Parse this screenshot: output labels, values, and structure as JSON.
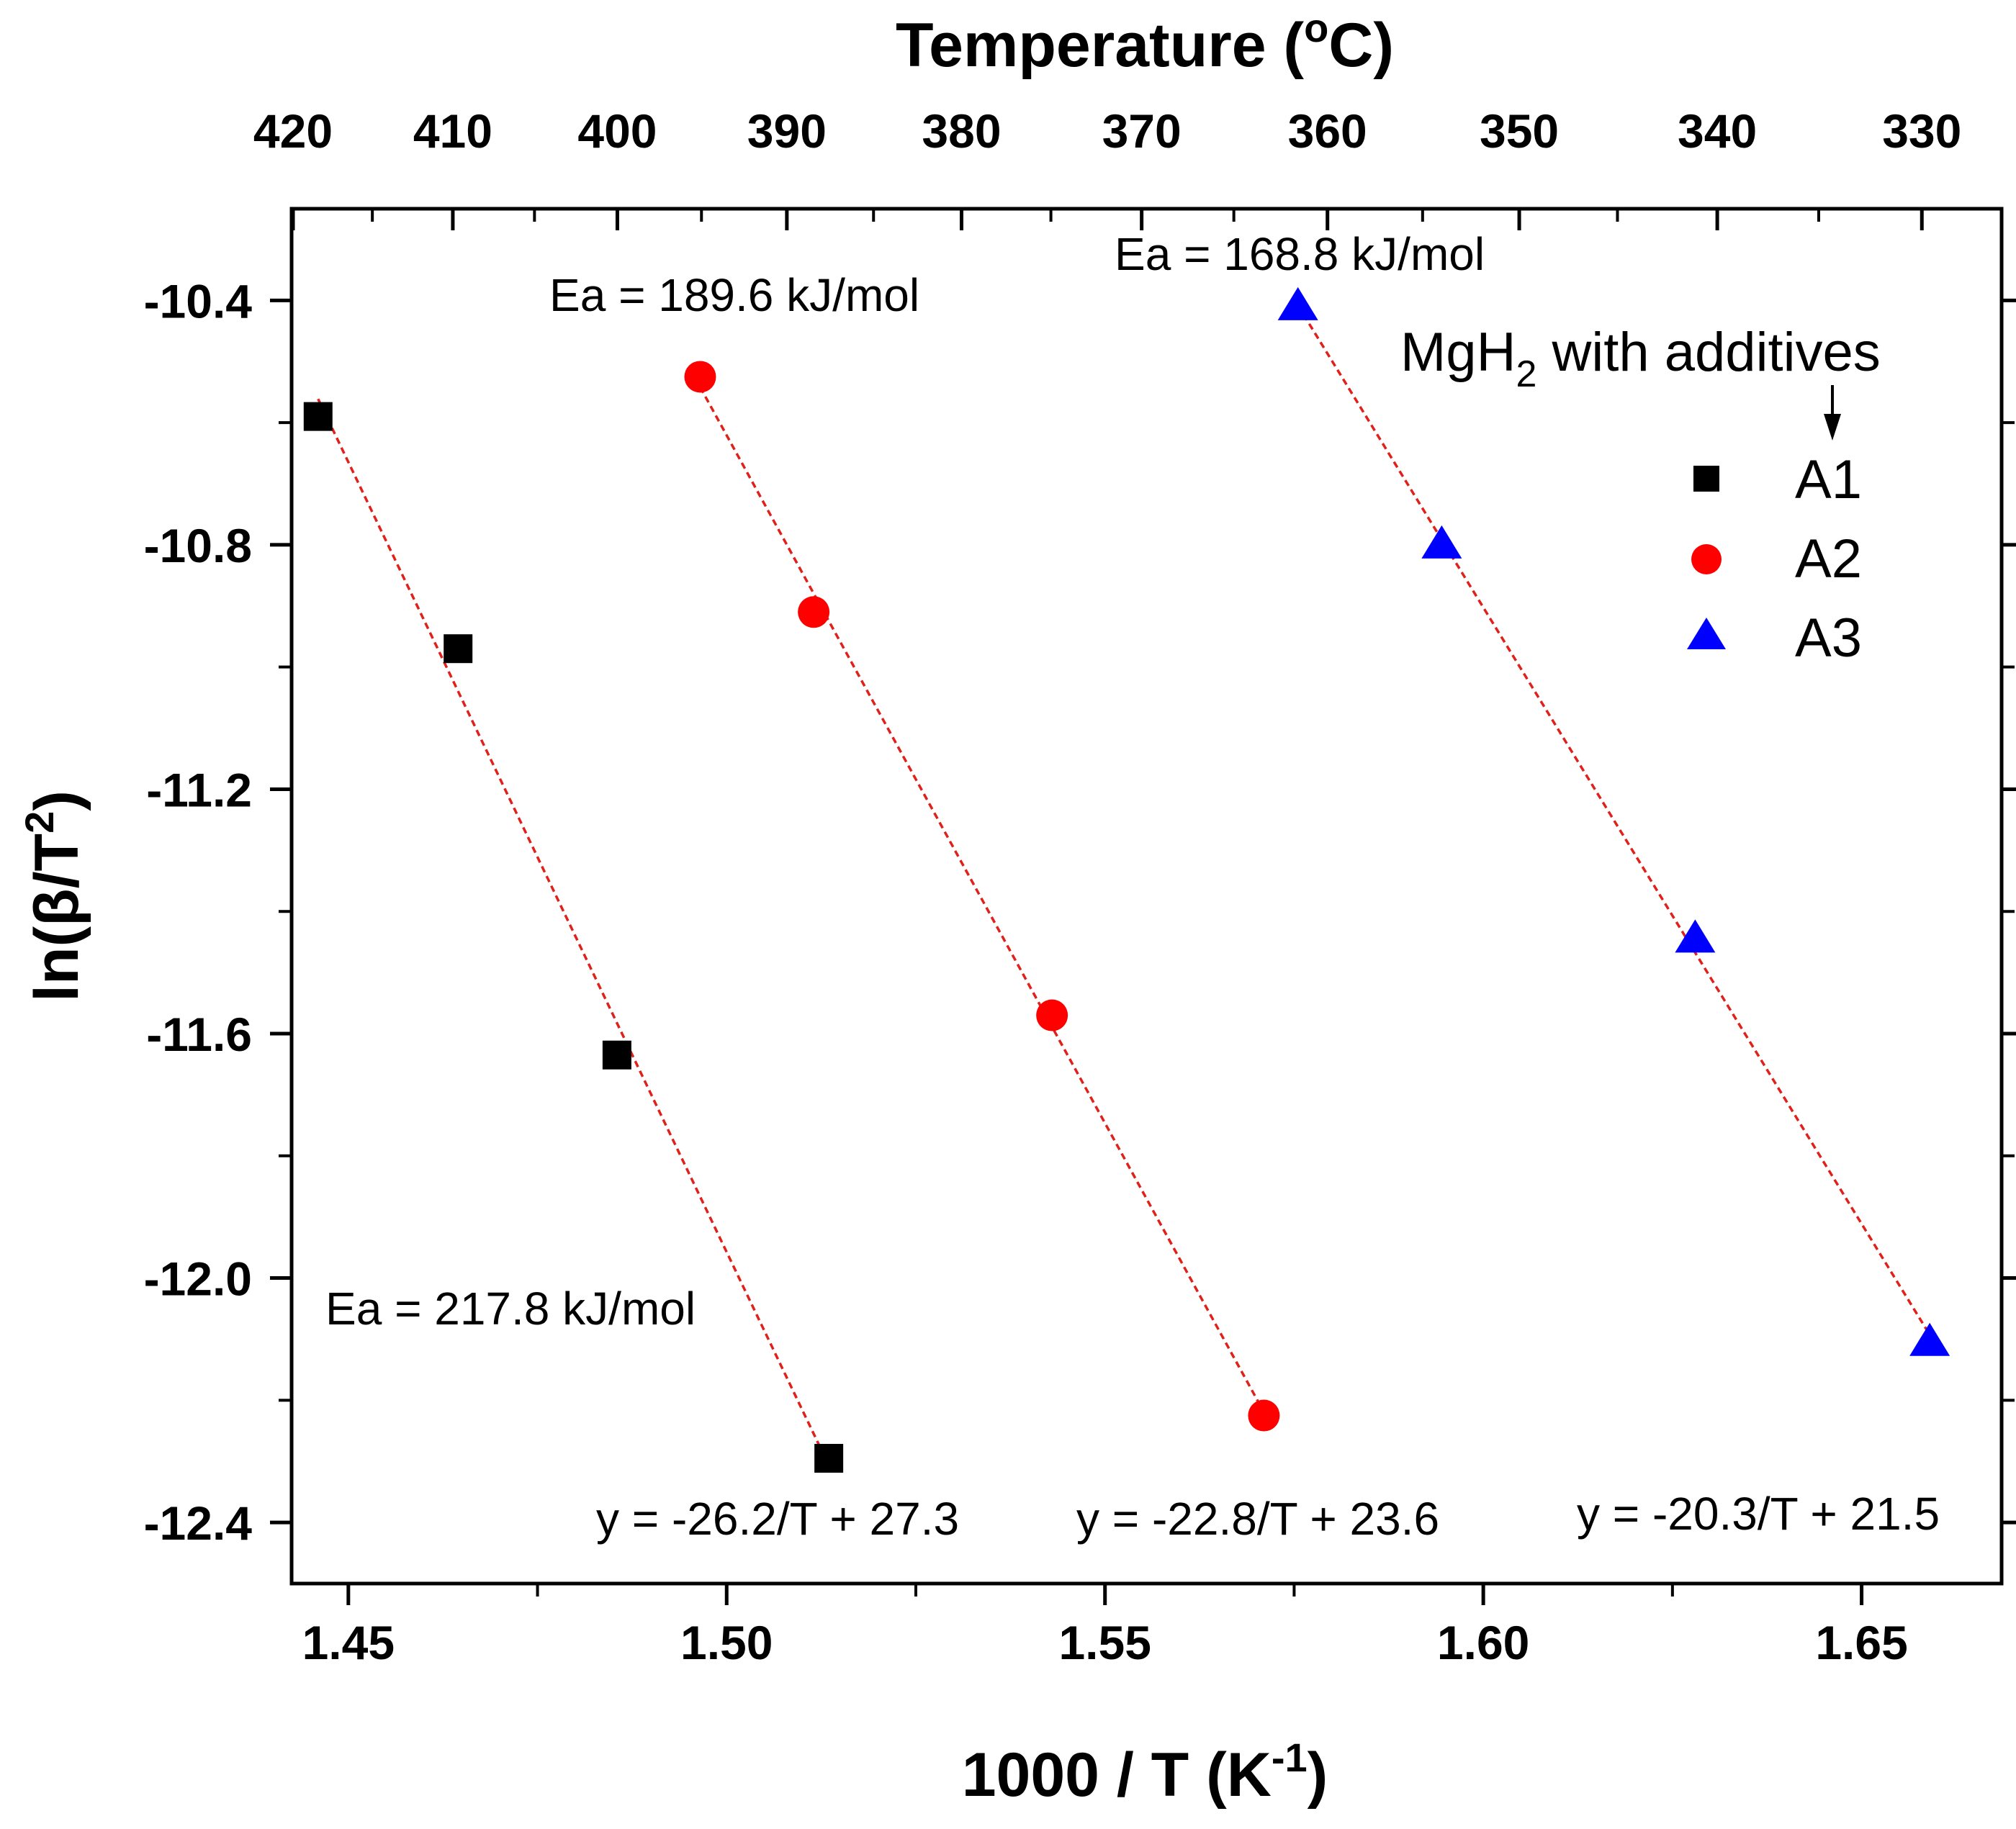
{
  "chart_data": {
    "type": "scatter",
    "x_axis": {
      "label_main": "1000 / T (K",
      "label_sup": "-1",
      "label_end": ")",
      "range": [
        1.4425,
        1.6685
      ],
      "ticks": [
        1.45,
        1.5,
        1.55,
        1.6,
        1.65
      ],
      "tick_labels": [
        "1.45",
        "1.50",
        "1.55",
        "1.60",
        "1.65"
      ]
    },
    "top_axis": {
      "label_main": "Temperature (",
      "label_sup": "o",
      "label_end": "C)",
      "ticks_celsius": [
        420,
        410,
        400,
        390,
        380,
        370,
        360,
        350,
        340,
        330
      ],
      "tick_labels": [
        "420",
        "410",
        "400",
        "390",
        "380",
        "370",
        "360",
        "350",
        "340",
        "330"
      ]
    },
    "y_axis": {
      "label_main": "ln(β/T",
      "label_sup": "2",
      "label_end": ")",
      "range": [
        -12.5,
        -10.25
      ],
      "ticks": [
        -10.4,
        -10.8,
        -11.2,
        -11.6,
        -12.0,
        -12.4
      ],
      "tick_labels": [
        "-10.4",
        "-10.8",
        "-11.2",
        "-11.6",
        "-12.0",
        "-12.4"
      ]
    },
    "series": [
      {
        "name": "A1",
        "marker": "square",
        "color": "#000000",
        "x": [
          1.446,
          1.4645,
          1.4855,
          1.5135
        ],
        "y": [
          -10.59,
          -10.97,
          -11.635,
          -12.295
        ],
        "fit_equation": "y = -26.2/T + 27.3",
        "ea_label": "Ea = 217.8 kJ/mol"
      },
      {
        "name": "A2",
        "marker": "circle",
        "color": "#ff0000",
        "x": [
          1.4965,
          1.5115,
          1.543,
          1.571
        ],
        "y": [
          -10.525,
          -10.91,
          -11.57,
          -12.225
        ],
        "fit_equation": "y = -22.8/T + 23.6",
        "ea_label": "Ea = 189.6 kJ/mol"
      },
      {
        "name": "A3",
        "marker": "triangle",
        "color": "#0000ff",
        "x": [
          1.5755,
          1.5945,
          1.628,
          1.659
        ],
        "y": [
          -10.41,
          -10.8,
          -11.445,
          -12.105
        ],
        "fit_equation": "y = -20.3/T + 21.5",
        "ea_label": "Ea = 168.8 kJ/mol"
      }
    ],
    "fit_line_color": "#e0201a",
    "legend": {
      "title_main": "MgH",
      "title_sub": "2",
      "title_end": " with additives",
      "position": "top-right"
    }
  }
}
